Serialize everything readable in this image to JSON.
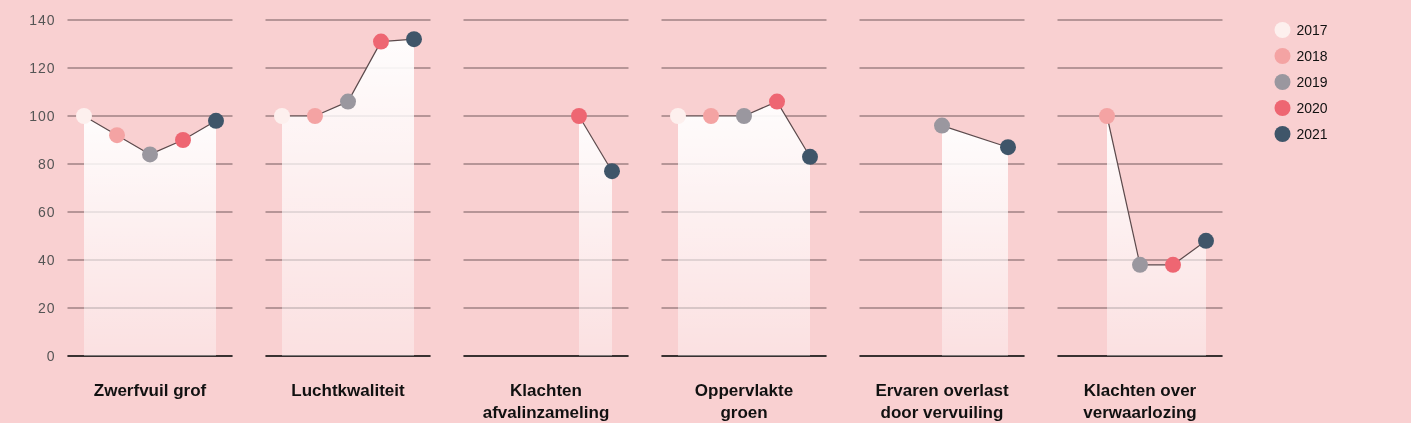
{
  "chart_data": {
    "type": "area",
    "categories": [
      null,
      null,
      null,
      null,
      null,
      null,
      null,
      null,
      null,
      null,
      null,
      null,
      null,
      null,
      null,
      null,
      null,
      null,
      null,
      null,
      null,
      null,
      null,
      null,
      null,
      null,
      null,
      null,
      null,
      null,
      null,
      null,
      null,
      null,
      null
    ],
    "ylim": [
      0,
      140
    ],
    "yticks": [
      0,
      20,
      40,
      60,
      80,
      100,
      120,
      140
    ],
    "grid": "y",
    "legend": "right",
    "marker": "circle",
    "series": [
      {
        "name": "Zwerfvuil grof",
        "color": "#5c4a4c",
        "marker": "none",
        "values": [
          100,
          92,
          84,
          90,
          98,
          null,
          null,
          null,
          null,
          null,
          null,
          null,
          null,
          null,
          null,
          null,
          null,
          null,
          null,
          null,
          null,
          null,
          null,
          null,
          null,
          null,
          null,
          null,
          null,
          null,
          null,
          null,
          null,
          null,
          null
        ]
      },
      {
        "name": "Luchtkwaliteit",
        "color": "#5c4a4c",
        "marker": "none",
        "values": [
          null,
          null,
          null,
          null,
          null,
          null,
          100,
          100,
          106,
          131,
          132,
          null,
          null,
          null,
          null,
          null,
          null,
          null,
          null,
          null,
          null,
          null,
          null,
          null,
          null,
          null,
          null,
          null,
          null,
          null,
          null,
          null,
          null,
          null,
          null
        ]
      },
      {
        "name": "Klachten afvalinzameling",
        "color": "#5c4a4c",
        "marker": "none",
        "values": [
          null,
          null,
          null,
          null,
          null,
          null,
          null,
          null,
          null,
          null,
          null,
          null,
          null,
          null,
          null,
          100,
          77,
          null,
          null,
          null,
          null,
          null,
          null,
          null,
          null,
          null,
          null,
          null,
          null,
          null,
          null,
          null,
          null,
          null,
          null
        ]
      },
      {
        "name": "Oppervlakte groen",
        "color": "#5c4a4c",
        "marker": "none",
        "values": [
          null,
          null,
          null,
          null,
          null,
          null,
          null,
          null,
          null,
          null,
          null,
          null,
          null,
          null,
          null,
          null,
          null,
          null,
          100,
          100,
          100,
          106,
          83,
          null,
          null,
          null,
          null,
          null,
          null,
          null,
          null,
          null,
          null,
          null,
          null
        ]
      },
      {
        "name": "Ervaren overlast door vervuiling",
        "color": "#5c4a4c",
        "marker": "none",
        "values": [
          null,
          null,
          null,
          null,
          null,
          null,
          null,
          null,
          null,
          null,
          null,
          null,
          null,
          null,
          null,
          null,
          null,
          null,
          null,
          null,
          null,
          null,
          null,
          null,
          null,
          null,
          96,
          null,
          87,
          null,
          null,
          null,
          null,
          null,
          null
        ]
      },
      {
        "name": "Klachten over verwaarlozing",
        "color": "#5c4a4c",
        "marker": "none",
        "values": [
          null,
          null,
          null,
          null,
          null,
          null,
          null,
          null,
          null,
          null,
          null,
          null,
          null,
          null,
          null,
          null,
          null,
          null,
          null,
          null,
          null,
          null,
          null,
          null,
          null,
          null,
          null,
          null,
          null,
          null,
          null,
          100,
          38,
          38,
          48
        ]
      },
      {
        "type": "scatter",
        "name": "2017",
        "color": "#fdf0ee",
        "values": [
          100,
          null,
          null,
          null,
          null,
          null,
          100,
          null,
          null,
          null,
          null,
          null,
          null,
          null,
          null,
          null,
          null,
          null,
          100,
          null,
          null,
          null,
          null,
          null,
          null,
          null,
          null,
          null,
          null,
          null,
          null,
          null,
          null,
          null,
          null
        ]
      },
      {
        "type": "scatter",
        "name": "2018",
        "color": "#f4a3a3",
        "values": [
          null,
          92,
          null,
          null,
          null,
          null,
          null,
          100,
          null,
          null,
          null,
          null,
          null,
          null,
          null,
          null,
          null,
          null,
          null,
          100,
          null,
          null,
          null,
          null,
          null,
          null,
          null,
          null,
          null,
          null,
          null,
          100,
          null,
          null,
          null
        ]
      },
      {
        "type": "scatter",
        "name": "2019",
        "color": "#9a979f",
        "values": [
          null,
          null,
          84,
          null,
          null,
          null,
          null,
          null,
          106,
          null,
          null,
          null,
          null,
          null,
          null,
          null,
          null,
          null,
          null,
          null,
          100,
          null,
          null,
          null,
          null,
          null,
          96,
          null,
          null,
          null,
          null,
          null,
          38,
          null,
          null
        ]
      },
      {
        "type": "scatter",
        "name": "2020",
        "color": "#ee6672",
        "values": [
          null,
          null,
          null,
          90,
          null,
          null,
          null,
          null,
          null,
          131,
          null,
          null,
          null,
          null,
          null,
          100,
          null,
          null,
          null,
          null,
          null,
          106,
          null,
          null,
          null,
          null,
          null,
          null,
          null,
          null,
          null,
          null,
          null,
          38,
          null
        ]
      },
      {
        "type": "scatter",
        "name": "2021",
        "color": "#3f5569",
        "values": [
          null,
          null,
          null,
          null,
          98,
          null,
          null,
          null,
          null,
          null,
          132,
          null,
          null,
          null,
          null,
          null,
          77,
          null,
          null,
          null,
          null,
          null,
          83,
          null,
          null,
          null,
          null,
          null,
          87,
          null,
          null,
          null,
          null,
          null,
          48
        ]
      }
    ]
  }
}
